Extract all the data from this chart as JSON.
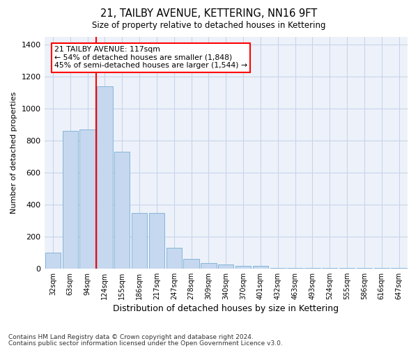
{
  "title1": "21, TAILBY AVENUE, KETTERING, NN16 9FT",
  "title2": "Size of property relative to detached houses in Kettering",
  "xlabel": "Distribution of detached houses by size in Kettering",
  "ylabel": "Number of detached properties",
  "categories": [
    "32sqm",
    "63sqm",
    "94sqm",
    "124sqm",
    "155sqm",
    "186sqm",
    "217sqm",
    "247sqm",
    "278sqm",
    "309sqm",
    "340sqm",
    "370sqm",
    "401sqm",
    "432sqm",
    "463sqm",
    "493sqm",
    "524sqm",
    "555sqm",
    "586sqm",
    "616sqm",
    "647sqm"
  ],
  "values": [
    100,
    860,
    870,
    1140,
    730,
    345,
    345,
    130,
    60,
    35,
    25,
    18,
    15,
    5,
    3,
    2,
    2,
    1,
    1,
    1,
    1
  ],
  "bar_color": "#c5d8ef",
  "bar_edge_color": "#7aadd4",
  "grid_color": "#c8d4e8",
  "background_color": "#edf2fa",
  "red_line_x": 3.0,
  "annotation_line1": "21 TAILBY AVENUE: 117sqm",
  "annotation_line2": "← 54% of detached houses are smaller (1,848)",
  "annotation_line3": "45% of semi-detached houses are larger (1,544) →",
  "footnote1": "Contains HM Land Registry data © Crown copyright and database right 2024.",
  "footnote2": "Contains public sector information licensed under the Open Government Licence v3.0.",
  "ylim": [
    0,
    1450
  ],
  "yticks": [
    0,
    200,
    400,
    600,
    800,
    1000,
    1200,
    1400
  ]
}
